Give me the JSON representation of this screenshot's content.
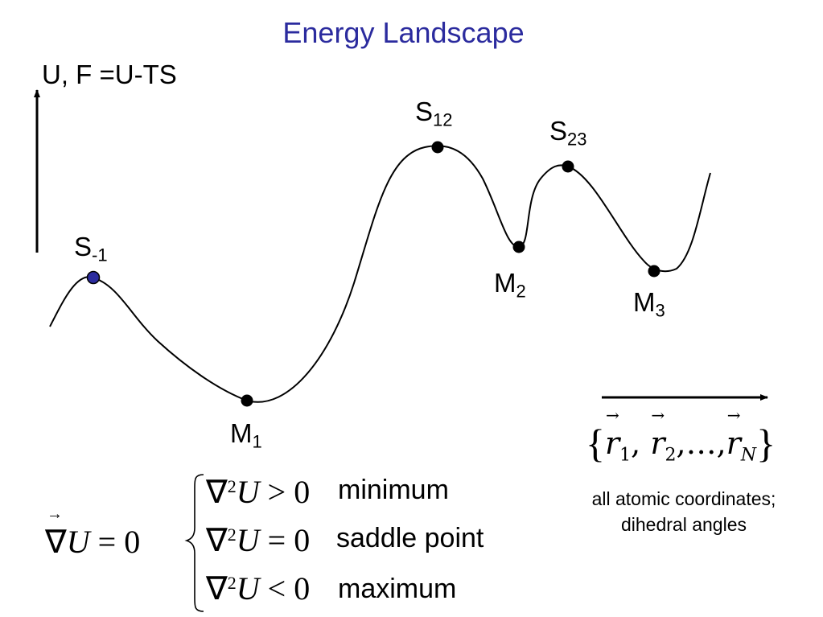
{
  "title": "Energy Landscape",
  "y_axis_label": "U, F =U-TS",
  "points": [
    {
      "id": "S-1",
      "base": "S",
      "sub": "-1",
      "fill": "#2b2b9e"
    },
    {
      "id": "M1",
      "base": "M",
      "sub": "1",
      "fill": "#000000"
    },
    {
      "id": "S12",
      "base": "S",
      "sub": "12",
      "fill": "#000000"
    },
    {
      "id": "M2",
      "base": "M",
      "sub": "2",
      "fill": "#000000"
    },
    {
      "id": "S23",
      "base": "S",
      "sub": "23",
      "fill": "#000000"
    },
    {
      "id": "M3",
      "base": "M",
      "sub": "3",
      "fill": "#000000"
    }
  ],
  "coordinates": {
    "brace_open": "{",
    "brace_close": "}",
    "r1_sub": "1",
    "r2_sub": "2",
    "ellipsis": "…",
    "rN_sub": "N",
    "note": "all atomic coordinates; dihedral angles"
  },
  "gradient_eq": {
    "lhs": "∇",
    "var": "U",
    "rhs": " = 0"
  },
  "conditions": [
    {
      "expr_op": " > 0",
      "label": "minimum"
    },
    {
      "expr_op": " = 0",
      "label": "saddle point"
    },
    {
      "expr_op": " < 0",
      "label": "maximum"
    }
  ],
  "colors": {
    "title": "#2b2b9e",
    "curve": "#000000",
    "axis": "#000000",
    "S-1_point": "#2b2b9e"
  }
}
